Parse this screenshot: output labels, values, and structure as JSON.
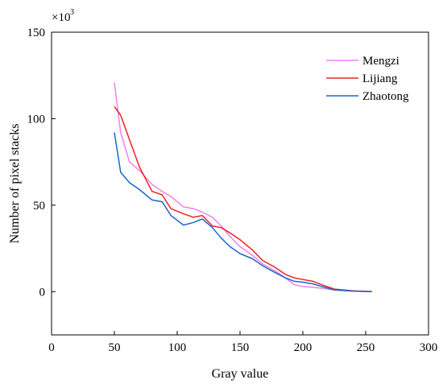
{
  "chart_data": {
    "type": "line",
    "xlabel": "Gray value",
    "ylabel": "Number of pixel stacks",
    "y_multiplier_base": "×10",
    "y_multiplier_exp": "3",
    "xlim": [
      0,
      300
    ],
    "ylim": [
      -25,
      150
    ],
    "x_ticks": [
      0,
      50,
      100,
      150,
      200,
      250,
      300
    ],
    "y_ticks": [
      0,
      50,
      100,
      150
    ],
    "x_tick_labels": [
      "0",
      "50",
      "100",
      "150",
      "200",
      "250",
      "300"
    ],
    "y_tick_labels": [
      "0",
      "50",
      "100",
      "150"
    ],
    "grid": false,
    "legend_position": "top-right",
    "series": [
      {
        "name": "Mengzi",
        "color": "#ee82ee",
        "x": [
          50,
          55,
          62,
          70,
          80,
          88,
          95,
          105,
          113,
          120,
          128,
          135,
          142,
          150,
          160,
          168,
          178,
          186,
          193,
          200,
          208,
          215,
          225,
          240,
          255
        ],
        "y": [
          121,
          92,
          75,
          70,
          62,
          58,
          55,
          49,
          48,
          46,
          43,
          38,
          32,
          26,
          21,
          16,
          12,
          8,
          4,
          3,
          2.5,
          2,
          1,
          0.3,
          0
        ]
      },
      {
        "name": "Lijiang",
        "color": "#ee2222",
        "x": [
          50,
          55,
          62,
          70,
          80,
          88,
          95,
          105,
          113,
          120,
          128,
          135,
          142,
          150,
          160,
          168,
          178,
          186,
          193,
          200,
          208,
          215,
          225,
          240,
          255
        ],
        "y": [
          107,
          102,
          88,
          72,
          58,
          56,
          48,
          45,
          43,
          44,
          38,
          37,
          34,
          30,
          24,
          18,
          14,
          10,
          8,
          7,
          6,
          4,
          1.5,
          0.5,
          0
        ]
      },
      {
        "name": "Zhaotong",
        "color": "#1a66cc",
        "x": [
          50,
          55,
          62,
          70,
          80,
          88,
          95,
          105,
          113,
          120,
          128,
          135,
          142,
          150,
          160,
          168,
          178,
          186,
          193,
          200,
          208,
          215,
          225,
          240,
          255
        ],
        "y": [
          92,
          69,
          63,
          59,
          53,
          52,
          44,
          38.5,
          40,
          42,
          37,
          31,
          26,
          22,
          19,
          15,
          11,
          8,
          6,
          5.5,
          4.5,
          3,
          1,
          0.3,
          0
        ]
      }
    ]
  }
}
